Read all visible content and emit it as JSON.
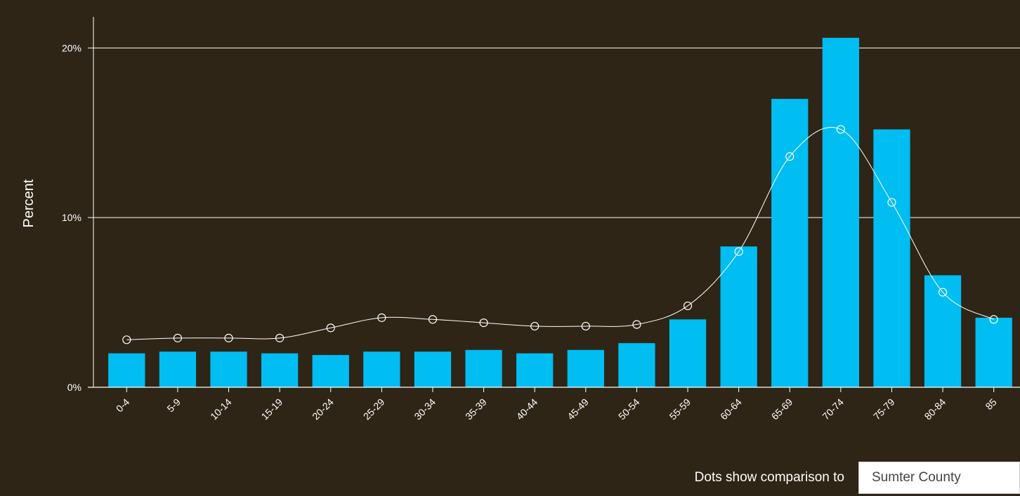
{
  "chart_data": {
    "type": "bar",
    "ylabel": "Percent",
    "ylim": [
      0,
      22
    ],
    "yticks": [
      0,
      10,
      20
    ],
    "ytick_labels": [
      "0%",
      "10%",
      "20%"
    ],
    "grid": true,
    "categories": [
      "0-4",
      "5-9",
      "10-14",
      "15-19",
      "20-24",
      "25-29",
      "30-34",
      "35-39",
      "40-44",
      "45-49",
      "50-54",
      "55-59",
      "60-64",
      "65-69",
      "70-74",
      "75-79",
      "80-84",
      "85"
    ],
    "series": [
      {
        "values": [
          2.0,
          2.1,
          2.1,
          2.0,
          1.9,
          2.1,
          2.1,
          2.2,
          2.0,
          2.2,
          2.6,
          4.0,
          8.3,
          17.0,
          20.6,
          15.2,
          6.6,
          4.1
        ],
        "color": "#00bdf2"
      },
      {
        "values": [
          2.8,
          2.9,
          2.9,
          2.9,
          3.5,
          4.1,
          4.0,
          3.8,
          3.6,
          3.6,
          3.7,
          4.8,
          8.0,
          13.6,
          15.2,
          10.9,
          5.6,
          4.0
        ],
        "color": "#ffffff",
        "style": "line-with-hollow-dots"
      }
    ]
  },
  "footer": {
    "compare_label": "Dots show comparison to",
    "compare_value": "Sumter County"
  }
}
